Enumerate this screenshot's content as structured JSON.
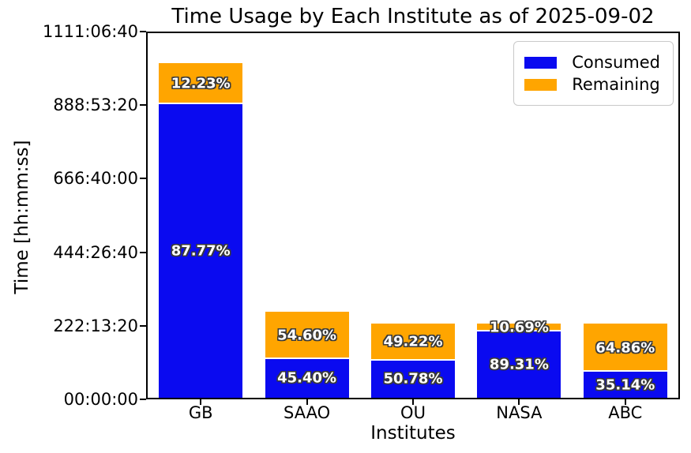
{
  "title": "Time Usage by Each Institute as of 2025-09-02",
  "axes": {
    "xlabel": "Institutes",
    "ylabel": "Time [hh:mm:ss]"
  },
  "legend": {
    "items": [
      {
        "label": "Consumed",
        "color": "#0a0af0"
      },
      {
        "label": "Remaining",
        "color": "#ffa500"
      }
    ]
  },
  "chart_data": {
    "type": "bar",
    "stacked": true,
    "title": "Time Usage by Each Institute as of 2025-09-02",
    "xlabel": "Institutes",
    "ylabel": "Time [hh:mm:ss]",
    "legend_position": "upper right",
    "grid": false,
    "categories": [
      "GB",
      "SAAO",
      "OU",
      "NASA",
      "ABC"
    ],
    "yticks": [
      "00:00:00",
      "222:13:20",
      "444:26:40",
      "666:40:00",
      "888:53:20",
      "1111:06:40"
    ],
    "ylim_seconds": [
      0,
      4000000
    ],
    "series": [
      {
        "name": "Consumed",
        "color": "#0a0af0",
        "pct": [
          87.77,
          45.4,
          50.78,
          89.31,
          35.14
        ],
        "labels": [
          "87.77%",
          "45.40%",
          "50.78%",
          "89.31%",
          "35.14%"
        ]
      },
      {
        "name": "Remaining",
        "color": "#ffa500",
        "pct": [
          12.23,
          54.6,
          49.22,
          10.69,
          64.86
        ],
        "labels": [
          "12.23%",
          "54.60%",
          "49.22%",
          "10.69%",
          "64.86%"
        ]
      }
    ],
    "totals_seconds_estimated": [
      3672000,
      940000,
      810000,
      810000,
      810000
    ],
    "totals_hhmmss_estimated": [
      "1020:00:00",
      "261:06:40",
      "225:00:00",
      "225:00:00",
      "225:00:00"
    ]
  }
}
